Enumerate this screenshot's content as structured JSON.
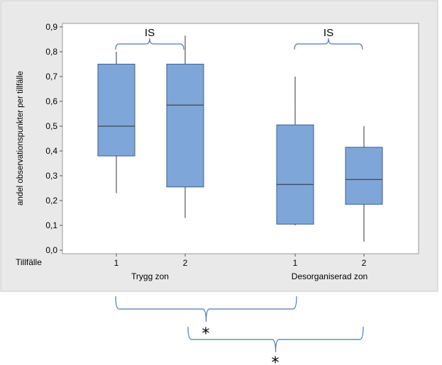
{
  "chart_data": {
    "type": "box",
    "title": "",
    "xlabel": "",
    "ylabel": "andel observationspunkter per tillfälle",
    "ylim": [
      0,
      0.9
    ],
    "y_ticks": [
      "0,0",
      "0,1",
      "0,2",
      "0,3",
      "0,4",
      "0,5",
      "0,6",
      "0,7",
      "0,8",
      "0,9"
    ],
    "x_row_label": "Tillfälle",
    "groups": [
      {
        "name": "Trygg zon",
        "boxes": [
          {
            "label": "1",
            "min": 0.23,
            "q1": 0.38,
            "median": 0.5,
            "q3": 0.75,
            "max": 0.8
          },
          {
            "label": "2",
            "min": 0.13,
            "q1": 0.255,
            "median": 0.585,
            "q3": 0.75,
            "max": 0.865
          }
        ]
      },
      {
        "name": "Desorganiserad zon",
        "boxes": [
          {
            "label": "1",
            "min": 0.1,
            "q1": 0.105,
            "median": 0.265,
            "q3": 0.505,
            "max": 0.7
          },
          {
            "label": "2",
            "min": 0.035,
            "q1": 0.185,
            "median": 0.285,
            "q3": 0.415,
            "max": 0.5
          }
        ]
      }
    ],
    "within_group_annotations": [
      "IS",
      "IS"
    ],
    "between_group_annotations": [
      "*",
      "*"
    ],
    "colors": {
      "box_fill": "#7fa6d9",
      "box_stroke": "#3e5f8f",
      "panel_bg": "#e9e9e9",
      "plot_bg": "#ffffff",
      "bracket": "#4a78b8"
    }
  }
}
